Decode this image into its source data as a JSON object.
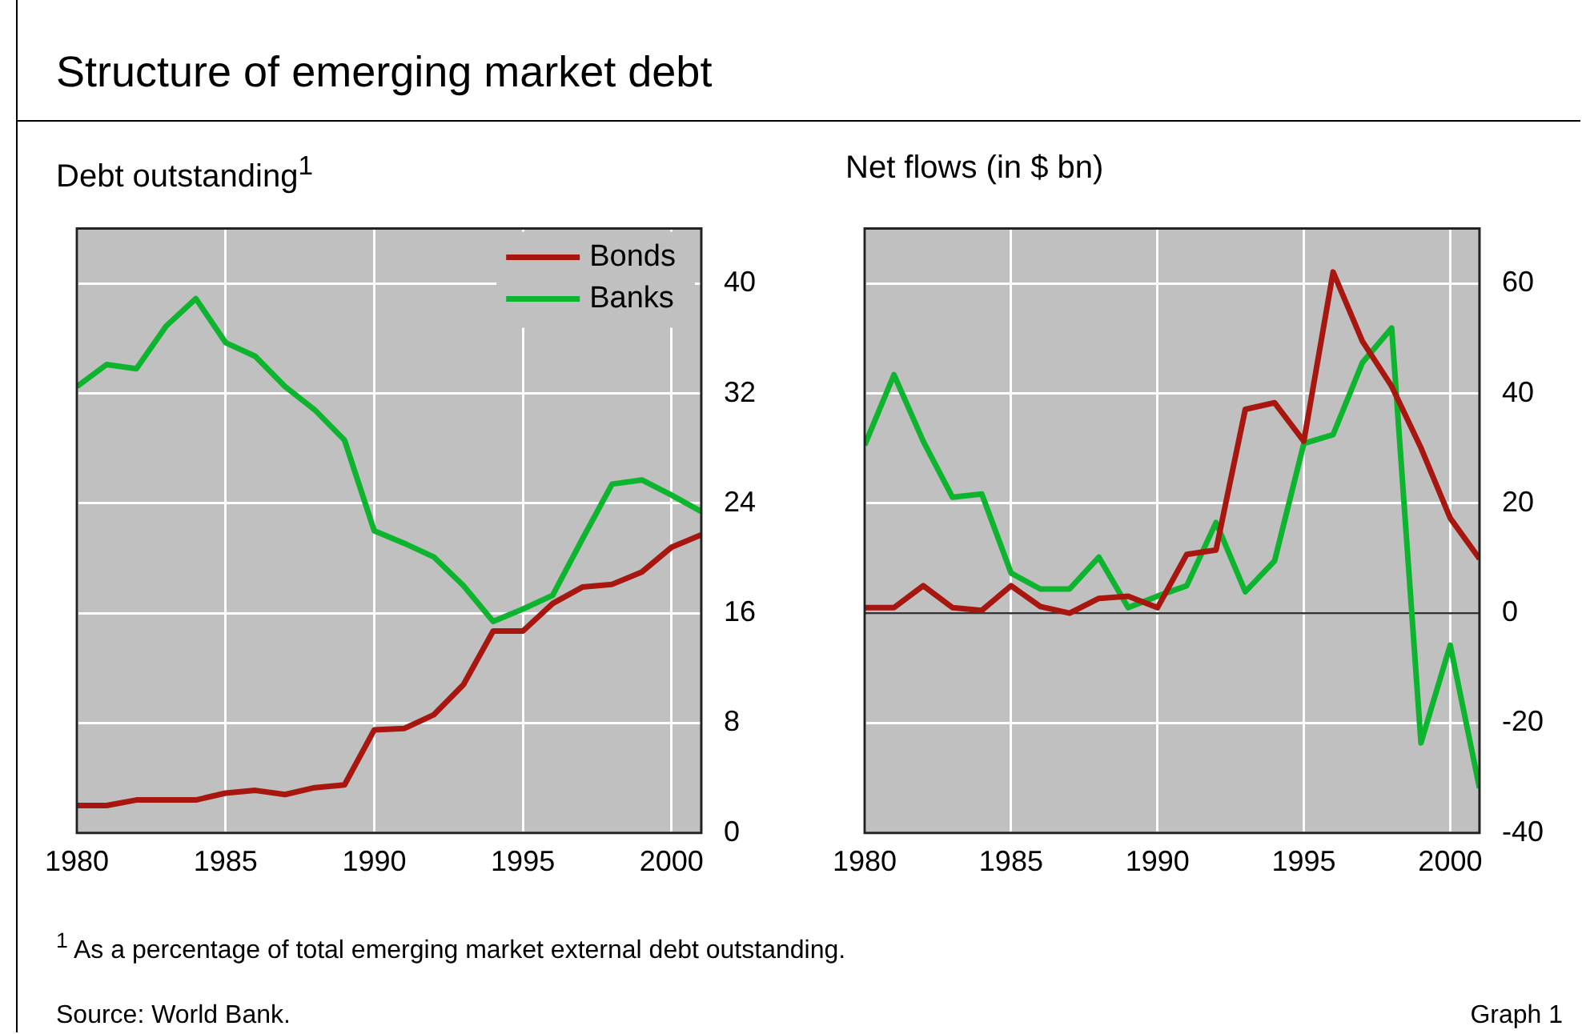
{
  "chart_data": [
    {
      "type": "line",
      "title": "Structure of emerging market debt",
      "subtitle": "Debt outstanding$^{1}$",
      "x": [
        1980,
        1981,
        1982,
        1983,
        1984,
        1985,
        1986,
        1987,
        1988,
        1989,
        1990,
        1991,
        1992,
        1993,
        1994,
        1995,
        1996,
        1997,
        1998,
        1999,
        2000,
        2001
      ],
      "series": [
        {
          "name": "Bonds",
          "color": "#a8170f",
          "values": [
            2.0,
            2.0,
            2.4,
            2.4,
            2.4,
            2.9,
            3.1,
            2.8,
            3.3,
            3.5,
            7.5,
            7.6,
            8.6,
            10.8,
            14.7,
            14.7,
            16.7,
            17.9,
            18.1,
            19.0,
            20.8,
            21.7
          ]
        },
        {
          "name": "Banks",
          "color": "#0db52f",
          "values": [
            32.5,
            34.1,
            33.8,
            36.9,
            38.9,
            35.7,
            34.7,
            32.5,
            30.8,
            28.6,
            22.0,
            21.1,
            20.1,
            18.0,
            15.4,
            16.3,
            17.3,
            21.4,
            25.4,
            25.7,
            24.6,
            23.4
          ]
        }
      ],
      "xlim": [
        1980,
        2001
      ],
      "xticks": [
        1980,
        1985,
        1990,
        1995,
        2000
      ],
      "ylim": [
        0,
        44
      ],
      "yticks": [
        0,
        8,
        16,
        24,
        32,
        40
      ],
      "grid": true,
      "legend": "top right",
      "line_style": "solid",
      "marker": "none",
      "annotations": [
        "$^{1}$  As a percentage of total emerging market external debt outstanding.",
        "Source: World Bank.",
        "Graph 1"
      ]
    },
    {
      "type": "line",
      "subtitle": "Net flows (in $ bn)",
      "x": [
        1980,
        1981,
        1982,
        1983,
        1984,
        1985,
        1986,
        1987,
        1988,
        1989,
        1990,
        1991,
        1992,
        1993,
        1994,
        1995,
        1996,
        1997,
        1998,
        1999,
        2000,
        2001
      ],
      "series": [
        {
          "color": "#a8170f",
          "values": [
            1.0,
            1.0,
            5.0,
            1.0,
            0.5,
            5.0,
            1.2,
            0,
            2.7,
            3.1,
            1.0,
            10.7,
            11.5,
            37.1,
            38.3,
            31.3,
            62.1,
            49.5,
            41.3,
            30.1,
            17.3,
            9.9
          ]
        },
        {
          "color": "#0db52f",
          "values": [
            30.6,
            43.4,
            31.3,
            21.1,
            21.7,
            7.3,
            4.4,
            4.4,
            10.2,
            1.0,
            3.1,
            5.0,
            16.5,
            3.9,
            9.5,
            30.9,
            32.5,
            45.6,
            51.9,
            -23.6,
            -5.8,
            -31.8
          ]
        }
      ],
      "xlim": [
        1980,
        2001
      ],
      "xticks": [
        1980,
        1985,
        1990,
        1995,
        2000
      ],
      "ylim": [
        -40,
        70
      ],
      "yticks": [
        -40,
        -20,
        0,
        20,
        40,
        60
      ],
      "grid": true,
      "line_style": "solid",
      "marker": "none",
      "ref_lines": [
        {
          "axis": "y",
          "value": 0,
          "color": "#333333"
        }
      ]
    }
  ]
}
